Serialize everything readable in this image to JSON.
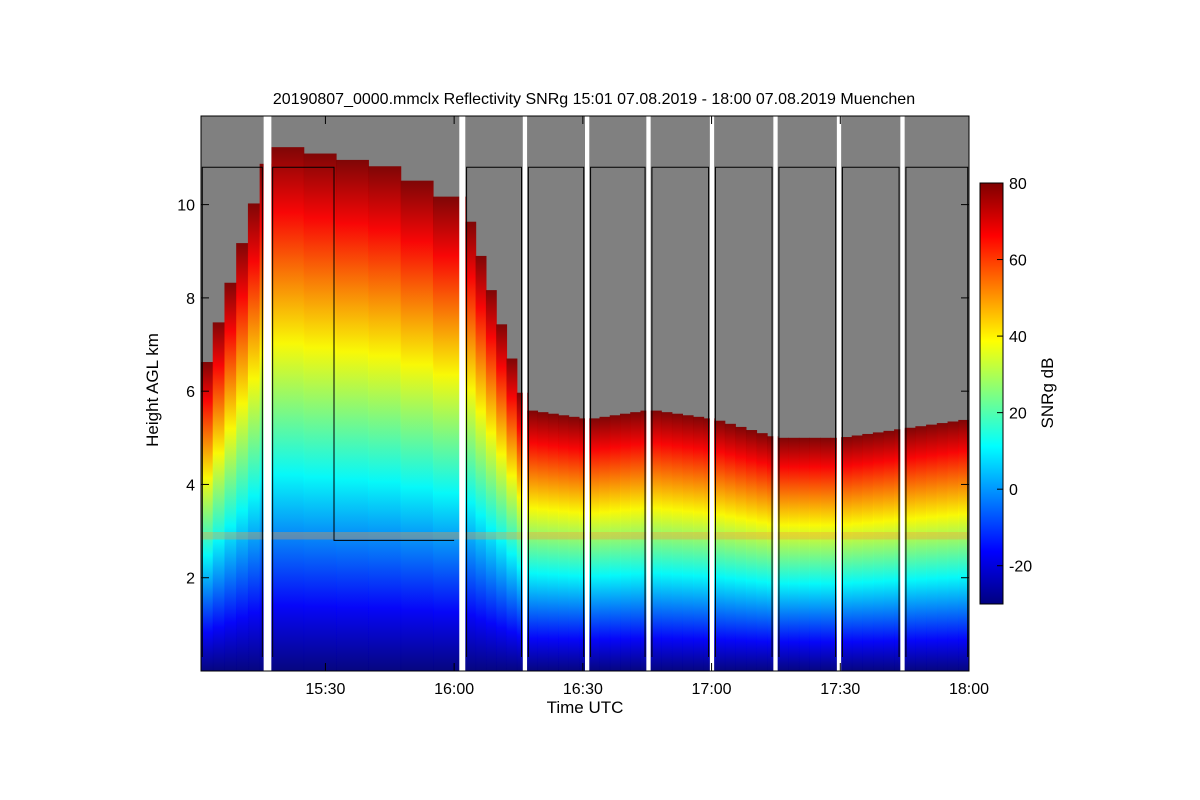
{
  "chart_data": {
    "type": "heatmap",
    "title": "20190807_0000.mmclx Reflectivity SNRg   15:01 07.08.2019 - 18:00 07.08.2019 Muenchen",
    "xlabel": "Time UTC",
    "ylabel": "Height AGL km",
    "colorbar_label": "SNRg dB",
    "xlim_minutes_utc": [
      901,
      1080
    ],
    "ylim_km": [
      0,
      11.9
    ],
    "x_ticks": [
      {
        "label": "15:30",
        "minute": 930
      },
      {
        "label": "16:00",
        "minute": 960
      },
      {
        "label": "16:30",
        "minute": 990
      },
      {
        "label": "17:00",
        "minute": 1020
      },
      {
        "label": "17:30",
        "minute": 1050
      },
      {
        "label": "18:00",
        "minute": 1080
      }
    ],
    "y_ticks": [
      {
        "label": "2",
        "value": 2
      },
      {
        "label": "4",
        "value": 4
      },
      {
        "label": "6",
        "value": 6
      },
      {
        "label": "8",
        "value": 8
      },
      {
        "label": "10",
        "value": 10
      }
    ],
    "colorbar": {
      "range": [
        -30,
        80
      ],
      "ticks": [
        {
          "label": "-20",
          "value": -20
        },
        {
          "label": "0",
          "value": 0
        },
        {
          "label": "20",
          "value": 20
        },
        {
          "label": "40",
          "value": 40
        },
        {
          "label": "60",
          "value": 60
        },
        {
          "label": "80",
          "value": 80
        }
      ],
      "colors": [
        "#00007f",
        "#0000ff",
        "#0080ff",
        "#00ffff",
        "#80ff80",
        "#ffff00",
        "#ff8000",
        "#ff0000",
        "#7f0000"
      ]
    },
    "background_color": "#808080",
    "gap_color": "#ffffff",
    "data_gaps_minutes": [
      [
        915.6,
        917.4
      ],
      [
        961.2,
        962.6
      ],
      [
        976.0,
        977.0
      ],
      [
        990.5,
        991.5
      ],
      [
        1004.8,
        1005.8
      ],
      [
        1019.6,
        1020.6
      ],
      [
        1034.4,
        1035.4
      ],
      [
        1049.2,
        1050.2
      ],
      [
        1064.0,
        1065.0
      ]
    ],
    "segment_starts_minutes": [
      901,
      917.4,
      962.6,
      977.0,
      991.5,
      1005.8,
      1020.6,
      1035.4,
      1050.2,
      1065.0
    ],
    "echo_top_km": [
      6.2,
      11.3,
      10.8,
      10.0,
      5.6,
      5.4,
      5.6,
      5.4,
      5.0,
      5.0,
      5.4
    ],
    "echo_top_times_minutes": [
      901,
      917.4,
      945,
      962.6,
      977.0,
      991.5,
      1005.8,
      1020.6,
      1035.4,
      1050.2,
      1080
    ],
    "melting_layer_km": 2.9,
    "outline_top_km": 10.8,
    "outline_step_km": 2.8,
    "outline_step_start_minute": 932,
    "outline_step_end_minute": 960
  }
}
